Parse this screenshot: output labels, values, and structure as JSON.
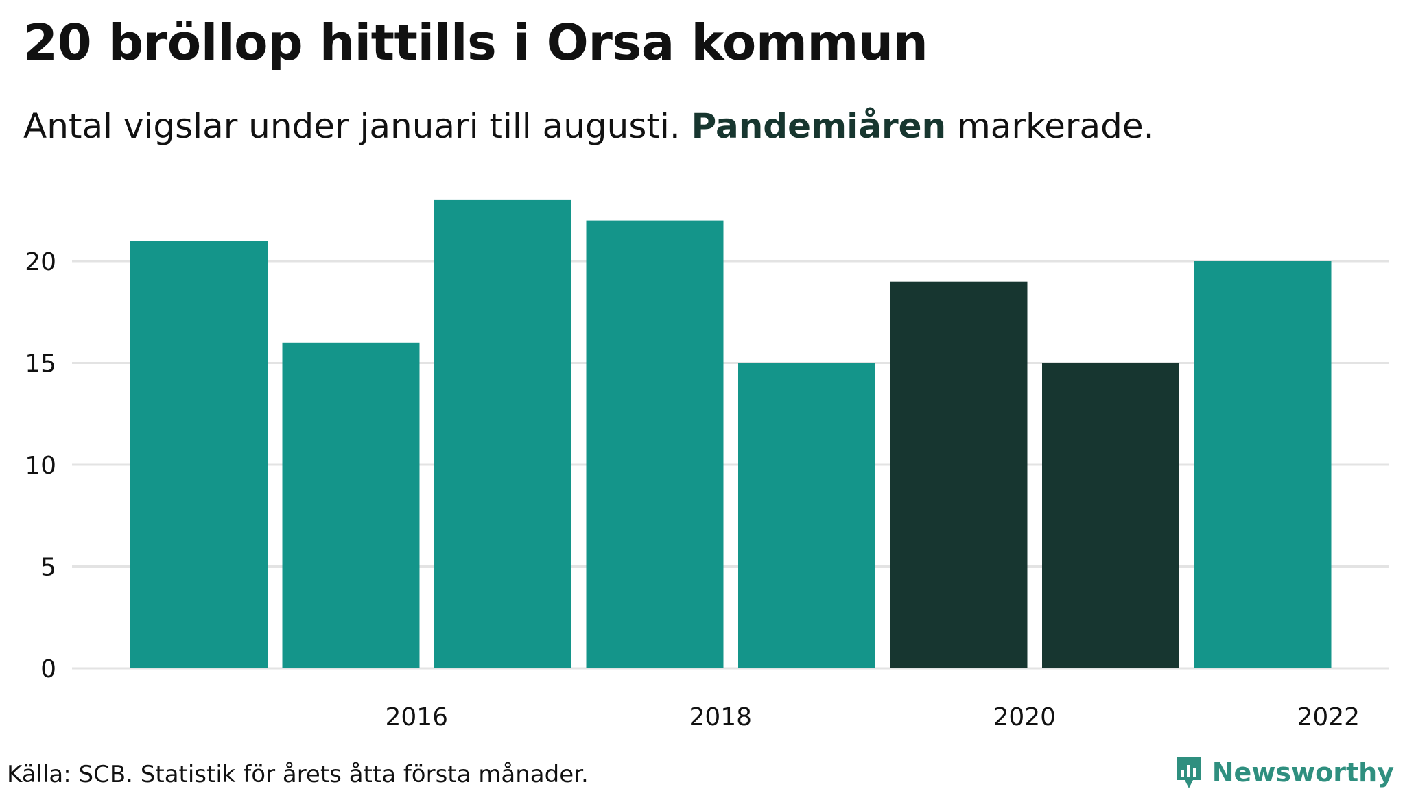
{
  "header": {
    "title": "20 bröllop hittills i Orsa kommun",
    "subtitle_pre": "Antal vigslar under januari till augusti.",
    "subtitle_highlight": "Pandemiåren",
    "subtitle_post": "markerade."
  },
  "footer": {
    "source": "Källa: SCB. Statistik för årets åtta första månader.",
    "brand": "Newsworthy"
  },
  "colors": {
    "regular": "#14958a",
    "pandemic": "#173630",
    "grid": "#e3e3e3",
    "brand": "#2f8f7f"
  },
  "chart_data": {
    "type": "bar",
    "title": "20 bröllop hittills i Orsa kommun",
    "subtitle": "Antal vigslar under januari till augusti. Pandemiåren markerade.",
    "xlabel": "",
    "ylabel": "",
    "categories": [
      2015,
      2016,
      2017,
      2018,
      2019,
      2020,
      2021,
      2022
    ],
    "values": [
      21,
      16,
      23,
      22,
      15,
      19,
      15,
      20
    ],
    "highlight": [
      false,
      false,
      false,
      false,
      false,
      true,
      true,
      false
    ],
    "highlight_label": "Pandemiåren",
    "ylim": [
      0,
      23
    ],
    "yticks": [
      0,
      5,
      10,
      15,
      20
    ],
    "ytick_labels": [
      "0",
      "5",
      "10",
      "15",
      "20"
    ],
    "xticks": [
      2016,
      2018,
      2020,
      2022
    ],
    "xtick_labels": [
      "2016",
      "2018",
      "2020",
      "2022"
    ],
    "grid": true,
    "legend": "none"
  }
}
